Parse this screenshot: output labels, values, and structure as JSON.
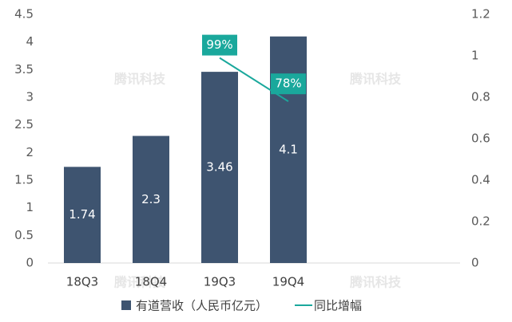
{
  "chart_data": {
    "type": "bar",
    "categories": [
      "18Q3",
      "18Q4",
      "19Q3",
      "19Q4",
      null,
      null
    ],
    "series": [
      {
        "name": "有道营收（人民币亿元）",
        "type": "bar",
        "color": "#3e5470",
        "values": [
          1.74,
          2.3,
          3.46,
          4.1,
          null,
          null
        ]
      },
      {
        "name": "同比增幅",
        "type": "line",
        "axis": "y2",
        "color": "#1aa89c",
        "values": [
          null,
          null,
          0.99,
          0.78,
          null,
          null
        ],
        "value_labels": [
          null,
          null,
          "99%",
          "78%",
          null,
          null
        ]
      }
    ],
    "ylim": [
      0,
      4.5
    ],
    "yticks": [
      0,
      0.5,
      1,
      1.5,
      2,
      2.5,
      3,
      3.5,
      4,
      4.5
    ],
    "y2lim": [
      0,
      1.2
    ],
    "y2ticks": [
      0,
      0.2,
      0.4,
      0.6,
      0.8,
      1,
      1.2
    ],
    "legend": "bottom",
    "watermark": "腾讯科技"
  }
}
